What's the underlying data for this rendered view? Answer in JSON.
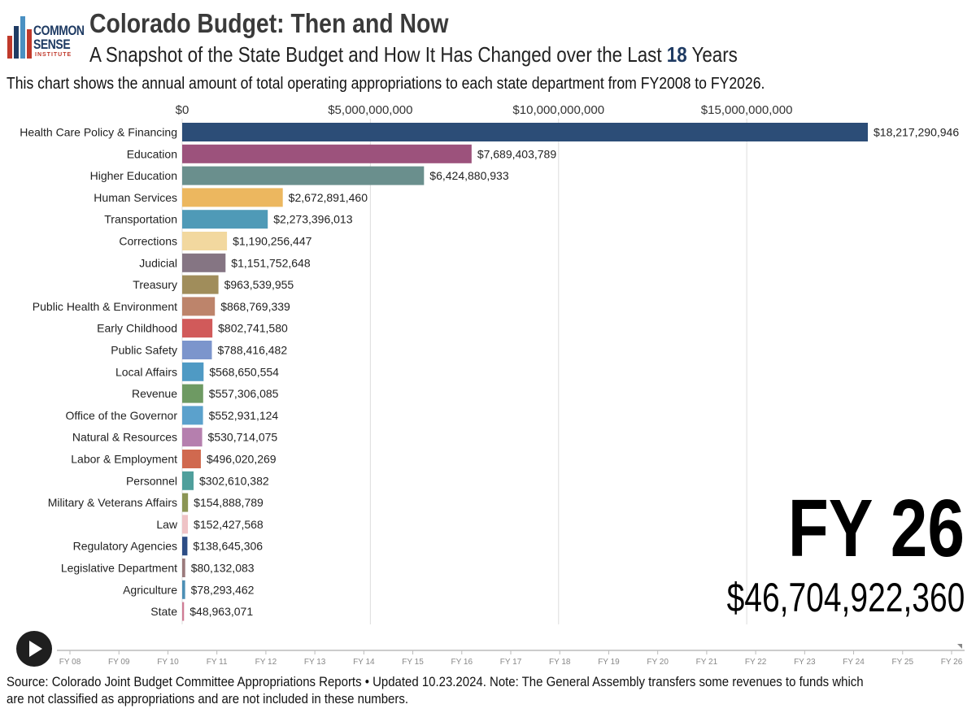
{
  "branding": {
    "logo_line1": "COMMON",
    "logo_line2": "SENSE",
    "logo_line3": "INSTITUTE",
    "brand_blue": "#1f3b63",
    "brand_red": "#c0392b",
    "brand_lightblue": "#4a90c2"
  },
  "header": {
    "title": "Colorado Budget: Then and Now",
    "subtitle_prefix": "A Snapshot of the State Budget and How It Has Changed over the Last ",
    "subtitle_years": "18",
    "subtitle_suffix": " Years",
    "description": "This chart shows the annual amount of total operating appropriations to each state department from FY2008 to FY2026."
  },
  "current_frame": {
    "fiscal_year": "FY 26",
    "total": "$46,704,922,360"
  },
  "chart_data": {
    "type": "bar",
    "orientation": "horizontal",
    "title": "Colorado Budget: Then and Now",
    "xlabel": "",
    "ylabel": "",
    "xlim": [
      0,
      18500000000
    ],
    "x_ticks": [
      0,
      5000000000,
      10000000000,
      15000000000
    ],
    "x_tick_labels": [
      "$0",
      "$5,000,000,000",
      "$10,000,000,000",
      "$15,000,000,000"
    ],
    "grid": true,
    "categories": [
      "Health Care Policy & Financing",
      "Education",
      "Higher Education",
      "Human Services",
      "Transportation",
      "Corrections",
      "Judicial",
      "Treasury",
      "Public Health & Environment",
      "Early Childhood",
      "Public Safety",
      "Local Affairs",
      "Revenue",
      "Office of the Governor",
      "Natural & Resources",
      "Labor & Employment",
      "Personnel",
      "Military & Veterans Affairs",
      "Law",
      "Regulatory Agencies",
      "Legislative Department",
      "Agriculture",
      "State"
    ],
    "values": [
      18217290946,
      7689403789,
      6424880933,
      2672891460,
      2273396013,
      1190256447,
      1151752648,
      963539955,
      868769339,
      802741580,
      788416482,
      568650554,
      557306085,
      552931124,
      530714075,
      496020269,
      302610382,
      154888789,
      152427568,
      138645306,
      80132083,
      78293462,
      48963071
    ],
    "value_labels": [
      "$18,217,290,946",
      "$7,689,403,789",
      "$6,424,880,933",
      "$2,672,891,460",
      "$2,273,396,013",
      "$1,190,256,447",
      "$1,151,752,648",
      "$963,539,955",
      "$868,769,339",
      "$802,741,580",
      "$788,416,482",
      "$568,650,554",
      "$557,306,085",
      "$552,931,124",
      "$530,714,075",
      "$496,020,269",
      "$302,610,382",
      "$154,888,789",
      "$152,427,568",
      "$138,645,306",
      "$80,132,083",
      "$78,293,462",
      "$48,963,071"
    ],
    "colors": [
      "#2c4d77",
      "#9c527c",
      "#6a8f8d",
      "#ecb75f",
      "#4f9ab7",
      "#f2d89f",
      "#857583",
      "#a08d5b",
      "#bd846b",
      "#d15a5a",
      "#7c95cc",
      "#4f9ac4",
      "#6e9a63",
      "#5ba1cc",
      "#b57fae",
      "#d0694f",
      "#4f9f9c",
      "#8b9555",
      "#efc3c6",
      "#2d4d85",
      "#9b7a7c",
      "#4d8fb5",
      "#d07c95"
    ]
  },
  "timeline": {
    "labels": [
      "FY 08",
      "FY 09",
      "FY 10",
      "FY 11",
      "FY 12",
      "FY 13",
      "FY 14",
      "FY 15",
      "FY 16",
      "FY 17",
      "FY 18",
      "FY 19",
      "FY 20",
      "FY 21",
      "FY 22",
      "FY 23",
      "FY 24",
      "FY 25",
      "FY 26"
    ],
    "current_index": 18
  },
  "controls": {
    "play_icon": "play-icon"
  },
  "footer": {
    "source": "Source: Colorado Joint Budget Committee Appropriations Reports • Updated 10.23.2024. Note: The General Assembly transfers some revenues to funds which are not classified as appropriations and are not included in these numbers."
  }
}
